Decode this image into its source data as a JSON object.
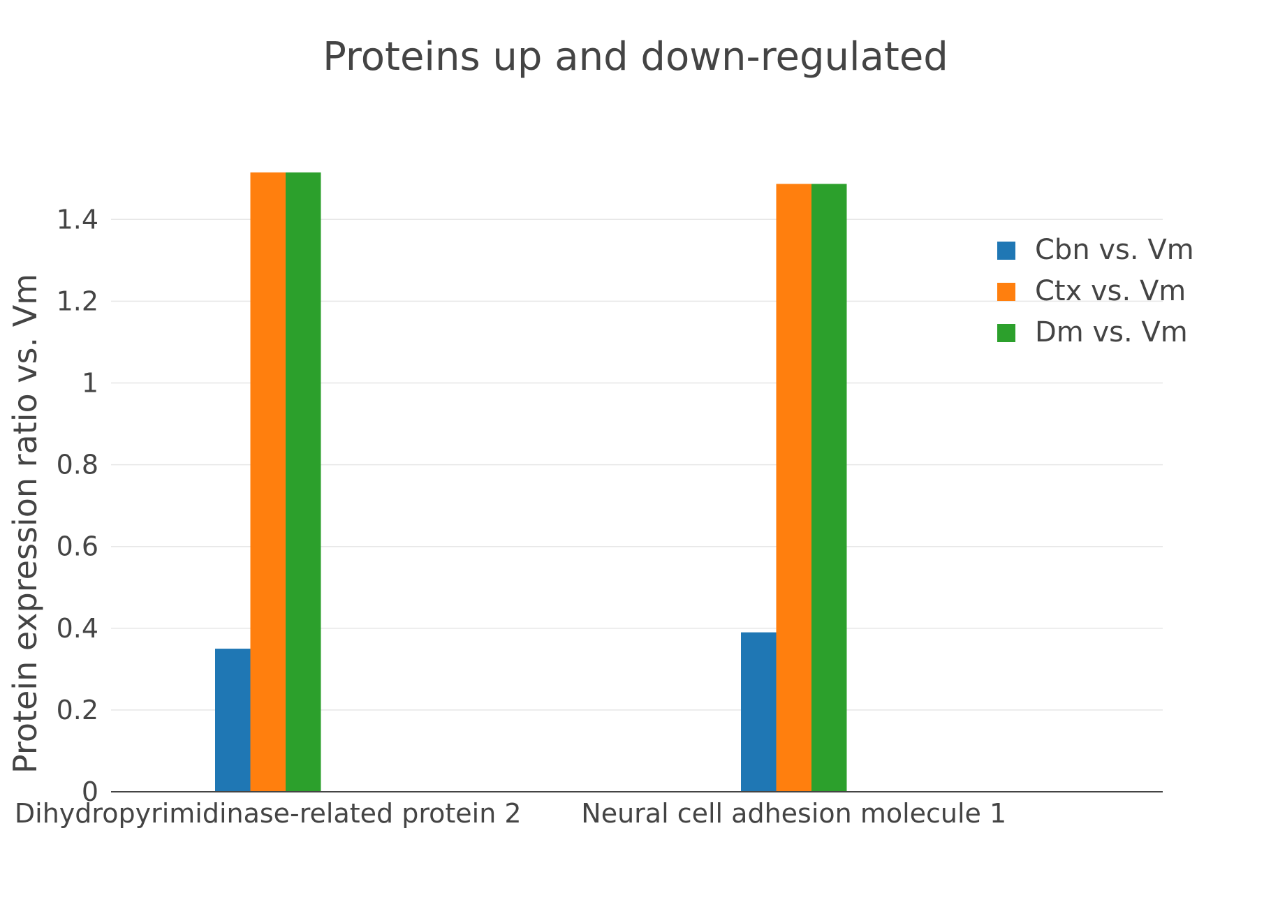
{
  "chart_data": {
    "type": "bar",
    "title": "Proteins up and down-regulated",
    "xlabel": "",
    "ylabel": "Protein expression ratio vs. Vm",
    "categories": [
      "Dihydropyrimidinase-related protein 2",
      "Neural cell adhesion molecule 1"
    ],
    "series": [
      {
        "name": "Cbn vs. Vm",
        "color": "#1f77b4",
        "values": [
          0.35,
          0.39
        ]
      },
      {
        "name": "Ctx vs. Vm",
        "color": "#ff7f0e",
        "values": [
          1.515,
          1.487
        ]
      },
      {
        "name": "Dm vs. Vm",
        "color": "#2ca02c",
        "values": [
          1.515,
          1.487
        ]
      }
    ],
    "ylim": [
      0,
      1.5
    ],
    "yticks": [
      0,
      0.2,
      0.4,
      0.6,
      0.8,
      1,
      1.2,
      1.4
    ],
    "ytick_labels": [
      "0",
      "0.2",
      "0.4",
      "0.6",
      "0.8",
      "1",
      "1.2",
      "1.4"
    ],
    "grid": true,
    "legend_position": "top-right"
  }
}
